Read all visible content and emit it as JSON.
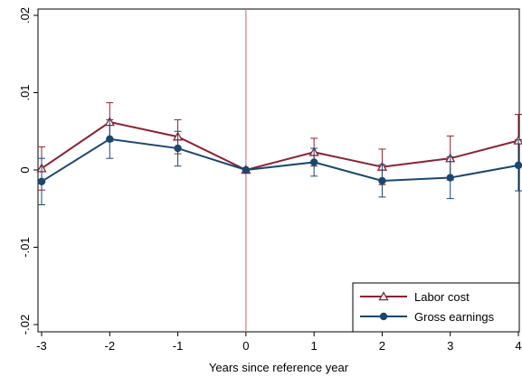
{
  "chart_data": {
    "type": "line",
    "title": "",
    "xlabel": "Years since reference year",
    "ylabel": "",
    "xlim": [
      -3,
      4
    ],
    "ylim": [
      -0.02,
      0.02
    ],
    "x_ticks": [
      -3,
      -2,
      -1,
      0,
      1,
      2,
      3,
      4
    ],
    "x_tick_labels": [
      "-3",
      "-2",
      "-1",
      "0",
      "1",
      "2",
      "3",
      "4"
    ],
    "y_ticks": [
      -0.02,
      -0.01,
      0,
      0.01,
      0.02
    ],
    "y_tick_labels": [
      "-.02",
      "-.01",
      "0",
      ".01",
      ".02"
    ],
    "reference_line_x": 0,
    "reference_line_color": "#e8747c",
    "grid": false,
    "legend_position": "bottom-right",
    "series": [
      {
        "name": "Labor cost",
        "color": "#8b2332",
        "marker": "triangle-hollow",
        "x": [
          -3,
          -2,
          -1,
          0,
          1,
          2,
          3,
          4
        ],
        "y": [
          0.0002,
          0.0062,
          0.0043,
          0.0,
          0.0023,
          0.0004,
          0.0015,
          0.0038
        ],
        "ci_low": [
          -0.0026,
          0.0037,
          0.0021,
          0.0,
          0.0005,
          -0.0019,
          -0.0013,
          0.0005
        ],
        "ci_high": [
          0.003,
          0.0087,
          0.0065,
          0.0,
          0.0041,
          0.0027,
          0.0044,
          0.0072
        ]
      },
      {
        "name": "Gross earnings",
        "color": "#1a476f",
        "marker": "circle-filled",
        "x": [
          -3,
          -2,
          -1,
          0,
          1,
          2,
          3,
          4
        ],
        "y": [
          -0.0015,
          0.004,
          0.0028,
          0.0,
          0.001,
          -0.0014,
          -0.001,
          0.0006
        ],
        "ci_low": [
          -0.0045,
          0.0015,
          0.0005,
          0.0,
          -0.0008,
          -0.0035,
          -0.0037,
          -0.0027
        ],
        "ci_high": [
          0.0015,
          0.0065,
          0.005,
          0.0,
          0.0028,
          0.0007,
          0.0017,
          0.0039
        ]
      }
    ]
  }
}
